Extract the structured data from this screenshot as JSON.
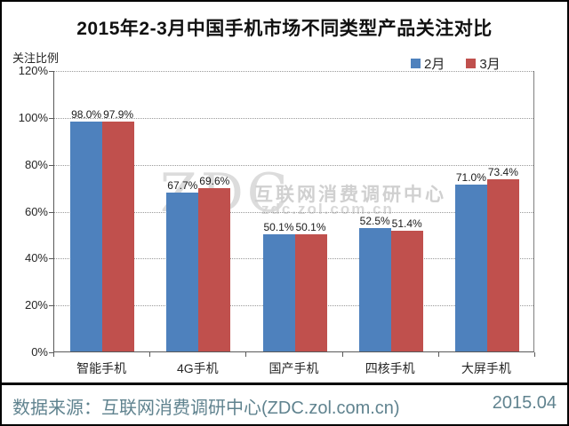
{
  "title": "2015年2-3月中国手机市场不同类型产品关注对比",
  "y_axis_title": "关注比例",
  "watermark": {
    "logo": "ZDC",
    "line1": "互联网消费调研中心",
    "line2": "zdc.zol.com.cn"
  },
  "footer": {
    "source": "数据来源：互联网消费调研中心(ZDC.zol.com.cn)",
    "date": "2015.04"
  },
  "chart_data": {
    "type": "bar",
    "title": "2015年2-3月中国手机市场不同类型产品关注对比",
    "categories": [
      "智能手机",
      "4G手机",
      "国产手机",
      "四核手机",
      "大屏手机"
    ],
    "series": [
      {
        "name": "2月",
        "color": "#4E81BD",
        "values": [
          98.0,
          67.7,
          50.1,
          52.5,
          71.0
        ],
        "labels": [
          "98.0%",
          "67.7%",
          "50.1%",
          "52.5%",
          "71.0%"
        ]
      },
      {
        "name": "3月",
        "color": "#C0504D",
        "values": [
          97.9,
          69.6,
          50.1,
          51.4,
          73.4
        ],
        "labels": [
          "97.9%",
          "69.6%",
          "50.1%",
          "51.4%",
          "73.4%"
        ]
      }
    ],
    "ylabel": "关注比例",
    "xlabel": "",
    "ylim": [
      0,
      120
    ],
    "ytick_step": 20,
    "ytick_suffix": "%",
    "grid": true,
    "legend_position": "top-right"
  }
}
